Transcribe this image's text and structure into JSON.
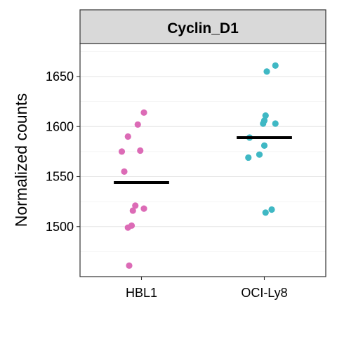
{
  "chart_data": {
    "type": "scatter",
    "title": "Cyclin_D1",
    "xlabel": "",
    "ylabel": "Normalized counts",
    "categories": [
      "HBL1",
      "OCI-Ly8"
    ],
    "ylim": [
      1450,
      1683
    ],
    "yticks": [
      1500,
      1550,
      1600,
      1650
    ],
    "grid": true,
    "legend": "none",
    "series": [
      {
        "category": "HBL1",
        "color": "#DC6BB6",
        "mean": 1544,
        "points": [
          {
            "jitter": 0.02,
            "y": 1614
          },
          {
            "jitter": -0.03,
            "y": 1602
          },
          {
            "jitter": -0.11,
            "y": 1590
          },
          {
            "jitter": -0.16,
            "y": 1575
          },
          {
            "jitter": -0.01,
            "y": 1576
          },
          {
            "jitter": -0.14,
            "y": 1555
          },
          {
            "jitter": -0.05,
            "y": 1521
          },
          {
            "jitter": 0.02,
            "y": 1518
          },
          {
            "jitter": -0.07,
            "y": 1516
          },
          {
            "jitter": -0.08,
            "y": 1501
          },
          {
            "jitter": -0.11,
            "y": 1499
          },
          {
            "jitter": -0.1,
            "y": 1461
          }
        ]
      },
      {
        "category": "OCI-Ly8",
        "color": "#3FB8C4",
        "mean": 1589,
        "points": [
          {
            "jitter": 0.09,
            "y": 1661
          },
          {
            "jitter": 0.02,
            "y": 1655
          },
          {
            "jitter": 0.01,
            "y": 1611
          },
          {
            "jitter": 0.0,
            "y": 1606
          },
          {
            "jitter": -0.01,
            "y": 1603
          },
          {
            "jitter": 0.09,
            "y": 1603
          },
          {
            "jitter": -0.12,
            "y": 1589
          },
          {
            "jitter": 0.0,
            "y": 1581
          },
          {
            "jitter": -0.04,
            "y": 1572
          },
          {
            "jitter": -0.13,
            "y": 1569
          },
          {
            "jitter": 0.06,
            "y": 1517
          },
          {
            "jitter": 0.01,
            "y": 1514
          }
        ]
      }
    ]
  }
}
